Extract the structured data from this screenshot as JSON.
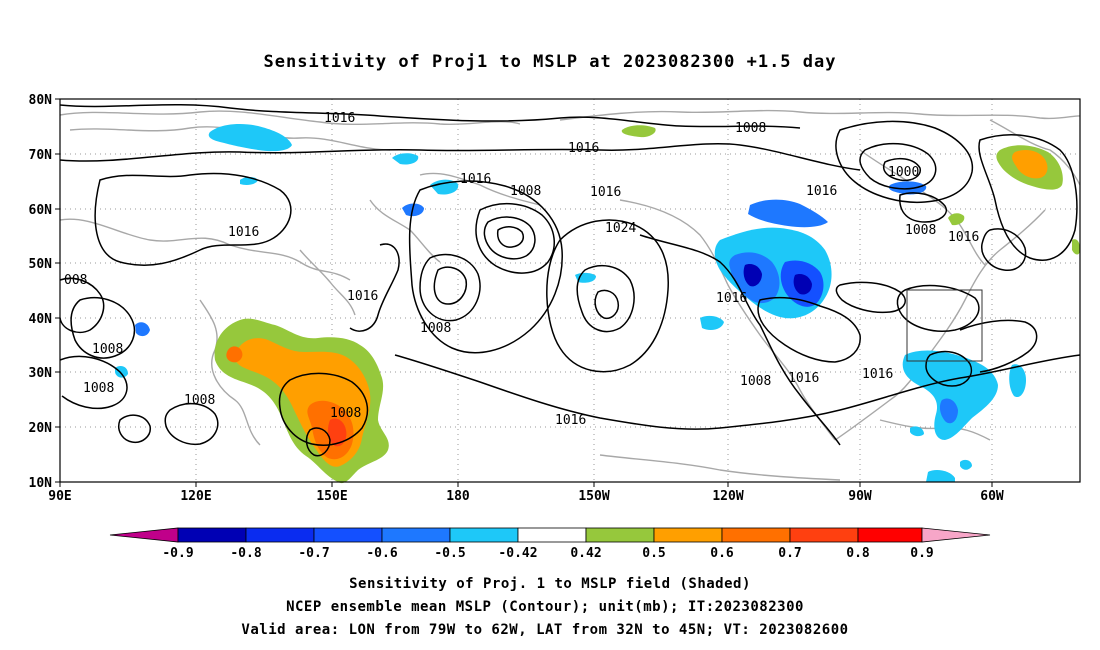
{
  "title": "Sensitivity of Proj1 to MSLP at 2023082300 +1.5 day",
  "lat_labels": [
    "80N",
    "70N",
    "60N",
    "50N",
    "40N",
    "30N",
    "20N",
    "10N"
  ],
  "lon_labels": [
    "90E",
    "120E",
    "150E",
    "180",
    "150W",
    "120W",
    "90W",
    "60W"
  ],
  "contour_labels": [
    "1016",
    "1008",
    "1016",
    "1000",
    "1016",
    "1008",
    "1016",
    "1016",
    "1008",
    "1016",
    "1024",
    "1008",
    "1016",
    "1016",
    "008",
    "1008",
    "1008",
    "1008",
    "1008",
    "1016",
    "1016",
    "1008",
    "1016",
    "1016"
  ],
  "colorbar": {
    "labels": [
      "-0.9",
      "-0.8",
      "-0.7",
      "-0.6",
      "-0.5",
      "-0.42",
      "0.42",
      "0.5",
      "0.6",
      "0.7",
      "0.8",
      "0.9"
    ],
    "colors": {
      "low_end": "#c0008a",
      "neg": [
        "#0000b4",
        "#0a2cf0",
        "#1450ff",
        "#1e78ff",
        "#1ec8f8"
      ],
      "zero": "#ffffff",
      "pos": [
        "#96c83c",
        "#ff9f00",
        "#ff7000",
        "#ff4010",
        "#ff0000"
      ],
      "high_end": "#f7a6c8"
    }
  },
  "caption": [
    "Sensitivity of Proj. 1 to MSLP field (Shaded)",
    "NCEP ensemble mean MSLP (Contour); unit(mb); IT:2023082300",
    "Valid area: LON from 79W to 62W, LAT from 32N to 45N; VT: 2023082600"
  ]
}
